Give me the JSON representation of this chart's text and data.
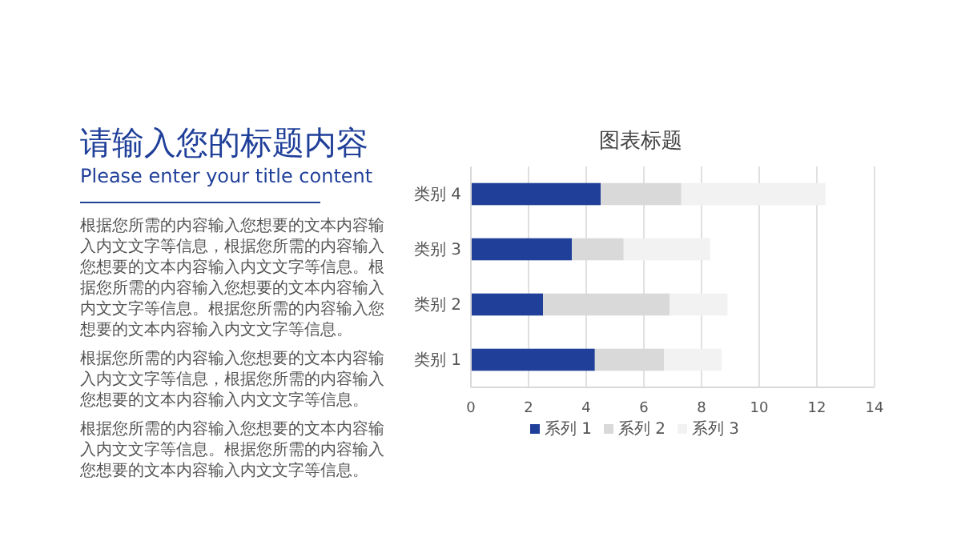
{
  "chart_data": {
    "type": "bar",
    "orientation": "horizontal",
    "stacked": true,
    "title": "图表标题",
    "categories": [
      "类别 4",
      "类别 3",
      "类别 2",
      "类别 1"
    ],
    "series": [
      {
        "name": "系列 1",
        "color": "#1f3f99",
        "values": [
          4.5,
          3.5,
          2.5,
          4.3
        ]
      },
      {
        "name": "系列 2",
        "color": "#d9d9d9",
        "values": [
          2.8,
          1.8,
          4.4,
          2.4
        ]
      },
      {
        "name": "系列 3",
        "color": "#f2f2f2",
        "values": [
          5,
          3,
          2,
          2
        ]
      }
    ],
    "xlim": [
      0,
      14
    ],
    "xticks": [
      0,
      2,
      4,
      6,
      8,
      10,
      12,
      14
    ],
    "grid": "x",
    "legend": "bottom",
    "annotations": [
      "请输入您的标题内容",
      "Please enter your title content",
      "根据您所需的内容输入您想要的文本内容输入内文文字等信息，根据您所需的内容输入您想要的文本内容输入内文文字等信息。根据您所需的内容输入您想要的文本内容输入内文文字等信息。根据您所需的内容输入您想要的文本内容输入内文文字等信息。",
      "根据您所需的内容输入您想要的文本内容输入内文文字等信息，根据您所需的内容输入您想要的文本内容输入内文文字等信息。",
      "根据您所需的内容输入您想要的文本内容输入内文文字等信息。根据您所需的内容输入您想要的文本内容输入内文文字等信息。"
    ]
  }
}
